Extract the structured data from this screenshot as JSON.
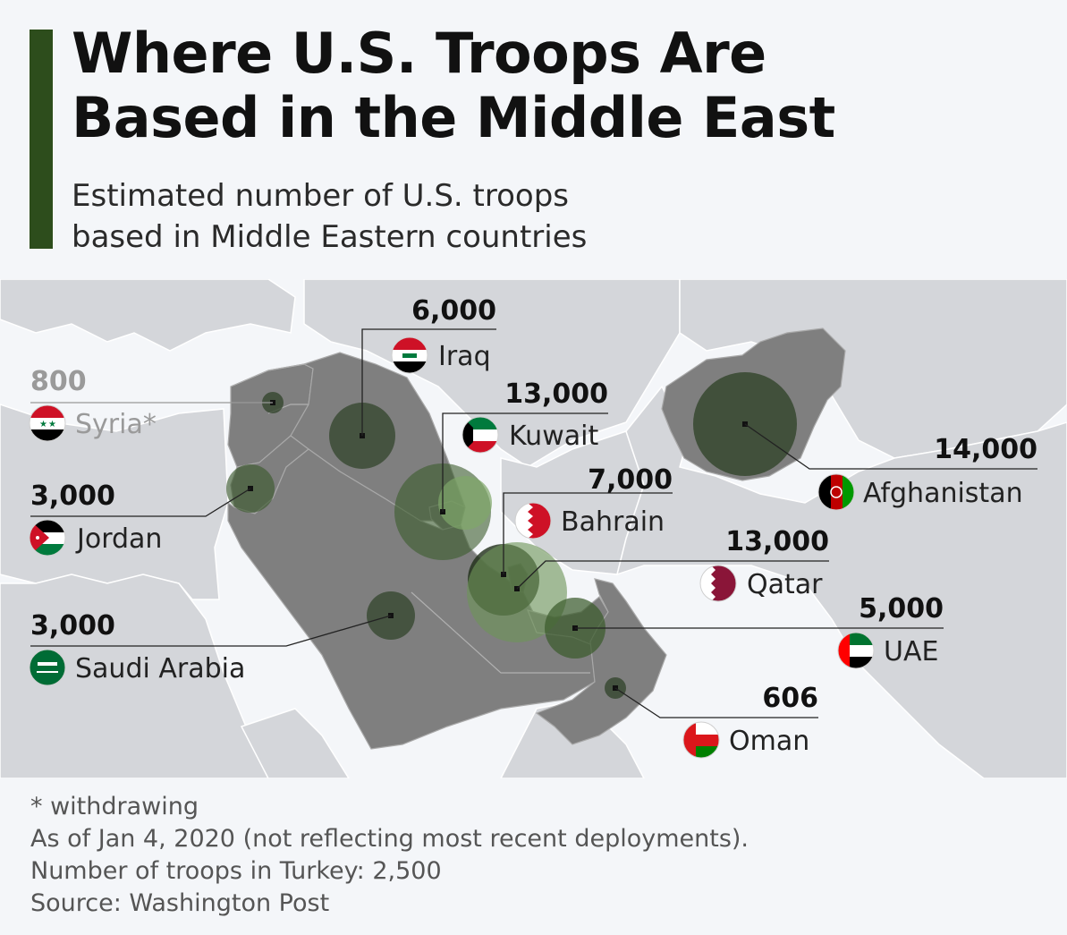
{
  "title": {
    "line1": "Where U.S. Troops Are",
    "line2": "Based in the Middle East"
  },
  "subtitle": {
    "line1": "Estimated number of U.S. troops",
    "line2": "based in Middle Eastern countries"
  },
  "countries": [
    {
      "name": "Iraq",
      "troops": "6,000",
      "value": 6000
    },
    {
      "name": "Syria*",
      "troops": "800",
      "value": 800
    },
    {
      "name": "Kuwait",
      "troops": "13,000",
      "value": 13000
    },
    {
      "name": "Jordan",
      "troops": "3,000",
      "value": 3000
    },
    {
      "name": "Bahrain",
      "troops": "7,000",
      "value": 7000
    },
    {
      "name": "Afghanistan",
      "troops": "14,000",
      "value": 14000
    },
    {
      "name": "Qatar",
      "troops": "13,000",
      "value": 13000
    },
    {
      "name": "Saudi Arabia",
      "troops": "3,000",
      "value": 3000
    },
    {
      "name": "UAE",
      "troops": "5,000",
      "value": 5000
    },
    {
      "name": "Oman",
      "troops": "606",
      "value": 606
    }
  ],
  "colors": {
    "accent_bar": "#2d4d1c",
    "land_highlight": "#7f7f7f",
    "land_other": "#d4d6da",
    "sea": "#f4f6f9",
    "bubble_dark": "#2f4228",
    "bubble_light": "#7fa66a"
  },
  "notes": {
    "withdrawing": "* withdrawing",
    "as_of": "As of Jan 4, 2020 (not reflecting most recent deployments).",
    "turkey": "Number of troops in Turkey: 2,500",
    "source": "Source: Washington Post"
  }
}
